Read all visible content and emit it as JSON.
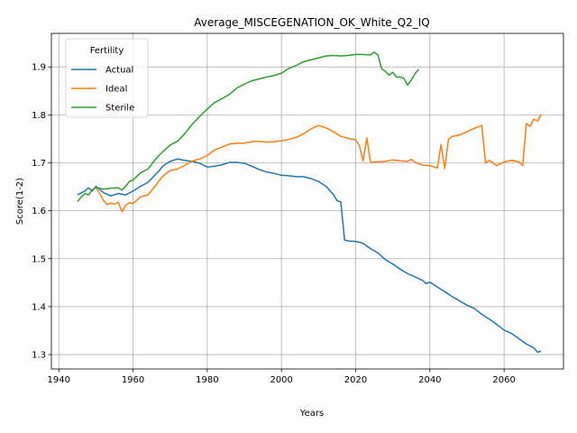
{
  "chart_data": {
    "type": "line",
    "title": "Average_MISCEGENATION_OK_White_Q2_IQ",
    "xlabel": "Years",
    "ylabel": "Score(1-2)",
    "xlim": [
      1938,
      2076
    ],
    "ylim": [
      1.27,
      1.97
    ],
    "xticks": [
      1940,
      1960,
      1980,
      2000,
      2020,
      2040,
      2060
    ],
    "yticks": [
      1.3,
      1.4,
      1.5,
      1.6,
      1.7,
      1.8,
      1.9
    ],
    "xtick_labels": [
      "1940",
      "1960",
      "1980",
      "2000",
      "2020",
      "2040",
      "2060"
    ],
    "ytick_labels": [
      "1.3",
      "1.4",
      "1.5",
      "1.6",
      "1.7",
      "1.8",
      "1.9"
    ],
    "grid": true,
    "legend": {
      "title": "Fertility",
      "placement": "top-left"
    },
    "series": [
      {
        "name": "Actual",
        "color": "#1f77b4",
        "points": [
          [
            1945,
            1.633
          ],
          [
            1947,
            1.641
          ],
          [
            1948,
            1.648
          ],
          [
            1949,
            1.641
          ],
          [
            1950,
            1.651
          ],
          [
            1952,
            1.638
          ],
          [
            1954,
            1.631
          ],
          [
            1956,
            1.636
          ],
          [
            1958,
            1.633
          ],
          [
            1960,
            1.641
          ],
          [
            1962,
            1.651
          ],
          [
            1964,
            1.659
          ],
          [
            1966,
            1.675
          ],
          [
            1967,
            1.683
          ],
          [
            1968,
            1.693
          ],
          [
            1970,
            1.703
          ],
          [
            1972,
            1.708
          ],
          [
            1974,
            1.705
          ],
          [
            1976,
            1.703
          ],
          [
            1978,
            1.699
          ],
          [
            1980,
            1.691
          ],
          [
            1982,
            1.693
          ],
          [
            1984,
            1.696
          ],
          [
            1986,
            1.701
          ],
          [
            1988,
            1.701
          ],
          [
            1990,
            1.699
          ],
          [
            1992,
            1.693
          ],
          [
            1994,
            1.686
          ],
          [
            1996,
            1.681
          ],
          [
            1998,
            1.678
          ],
          [
            2000,
            1.674
          ],
          [
            2002,
            1.673
          ],
          [
            2004,
            1.671
          ],
          [
            2006,
            1.671
          ],
          [
            2008,
            1.667
          ],
          [
            2010,
            1.661
          ],
          [
            2012,
            1.651
          ],
          [
            2014,
            1.634
          ],
          [
            2015,
            1.621
          ],
          [
            2016,
            1.618
          ],
          [
            2017,
            1.539
          ],
          [
            2018,
            1.537
          ],
          [
            2020,
            1.536
          ],
          [
            2022,
            1.532
          ],
          [
            2024,
            1.521
          ],
          [
            2026,
            1.512
          ],
          [
            2028,
            1.498
          ],
          [
            2030,
            1.489
          ],
          [
            2032,
            1.478
          ],
          [
            2034,
            1.469
          ],
          [
            2036,
            1.462
          ],
          [
            2038,
            1.455
          ],
          [
            2039,
            1.448
          ],
          [
            2040,
            1.451
          ],
          [
            2042,
            1.441
          ],
          [
            2044,
            1.431
          ],
          [
            2046,
            1.421
          ],
          [
            2048,
            1.412
          ],
          [
            2050,
            1.403
          ],
          [
            2052,
            1.396
          ],
          [
            2054,
            1.384
          ],
          [
            2056,
            1.374
          ],
          [
            2058,
            1.363
          ],
          [
            2060,
            1.351
          ],
          [
            2062,
            1.344
          ],
          [
            2064,
            1.333
          ],
          [
            2066,
            1.322
          ],
          [
            2068,
            1.314
          ],
          [
            2069,
            1.305
          ],
          [
            2070,
            1.307
          ]
        ]
      },
      {
        "name": "Ideal",
        "color": "#ff7f0e",
        "points": [
          [
            1950,
            1.648
          ],
          [
            1951,
            1.636
          ],
          [
            1952,
            1.622
          ],
          [
            1953,
            1.613
          ],
          [
            1954,
            1.616
          ],
          [
            1955,
            1.614
          ],
          [
            1956,
            1.618
          ],
          [
            1957,
            1.598
          ],
          [
            1958,
            1.611
          ],
          [
            1959,
            1.617
          ],
          [
            1960,
            1.615
          ],
          [
            1962,
            1.629
          ],
          [
            1964,
            1.633
          ],
          [
            1966,
            1.652
          ],
          [
            1968,
            1.672
          ],
          [
            1970,
            1.684
          ],
          [
            1972,
            1.687
          ],
          [
            1974,
            1.695
          ],
          [
            1976,
            1.704
          ],
          [
            1978,
            1.708
          ],
          [
            1980,
            1.715
          ],
          [
            1982,
            1.727
          ],
          [
            1984,
            1.733
          ],
          [
            1986,
            1.739
          ],
          [
            1988,
            1.741
          ],
          [
            1990,
            1.741
          ],
          [
            1992,
            1.744
          ],
          [
            1994,
            1.745
          ],
          [
            1996,
            1.743
          ],
          [
            1998,
            1.744
          ],
          [
            2000,
            1.746
          ],
          [
            2002,
            1.749
          ],
          [
            2004,
            1.753
          ],
          [
            2006,
            1.761
          ],
          [
            2008,
            1.771
          ],
          [
            2010,
            1.778
          ],
          [
            2012,
            1.773
          ],
          [
            2014,
            1.765
          ],
          [
            2016,
            1.755
          ],
          [
            2018,
            1.751
          ],
          [
            2020,
            1.748
          ],
          [
            2021,
            1.736
          ],
          [
            2022,
            1.704
          ],
          [
            2023,
            1.752
          ],
          [
            2024,
            1.701
          ],
          [
            2026,
            1.702
          ],
          [
            2028,
            1.703
          ],
          [
            2030,
            1.706
          ],
          [
            2032,
            1.704
          ],
          [
            2034,
            1.703
          ],
          [
            2035,
            1.707
          ],
          [
            2036,
            1.701
          ],
          [
            2038,
            1.695
          ],
          [
            2040,
            1.694
          ],
          [
            2042,
            1.689
          ],
          [
            2043,
            1.738
          ],
          [
            2044,
            1.688
          ],
          [
            2045,
            1.749
          ],
          [
            2046,
            1.755
          ],
          [
            2048,
            1.758
          ],
          [
            2050,
            1.765
          ],
          [
            2052,
            1.772
          ],
          [
            2054,
            1.778
          ],
          [
            2055,
            1.699
          ],
          [
            2056,
            1.705
          ],
          [
            2058,
            1.694
          ],
          [
            2060,
            1.702
          ],
          [
            2062,
            1.705
          ],
          [
            2064,
            1.702
          ],
          [
            2065,
            1.694
          ],
          [
            2066,
            1.782
          ],
          [
            2067,
            1.776
          ],
          [
            2068,
            1.791
          ],
          [
            2069,
            1.787
          ],
          [
            2070,
            1.801
          ]
        ]
      },
      {
        "name": "Sterile",
        "color": "#2ca02c",
        "points": [
          [
            1945,
            1.619
          ],
          [
            1946,
            1.628
          ],
          [
            1947,
            1.636
          ],
          [
            1948,
            1.633
          ],
          [
            1949,
            1.644
          ],
          [
            1950,
            1.649
          ],
          [
            1952,
            1.645
          ],
          [
            1954,
            1.647
          ],
          [
            1956,
            1.648
          ],
          [
            1957,
            1.643
          ],
          [
            1958,
            1.651
          ],
          [
            1959,
            1.661
          ],
          [
            1960,
            1.664
          ],
          [
            1962,
            1.679
          ],
          [
            1964,
            1.687
          ],
          [
            1966,
            1.707
          ],
          [
            1968,
            1.723
          ],
          [
            1970,
            1.737
          ],
          [
            1972,
            1.745
          ],
          [
            1974,
            1.761
          ],
          [
            1976,
            1.781
          ],
          [
            1978,
            1.797
          ],
          [
            1980,
            1.812
          ],
          [
            1982,
            1.826
          ],
          [
            1984,
            1.834
          ],
          [
            1986,
            1.843
          ],
          [
            1988,
            1.856
          ],
          [
            1990,
            1.864
          ],
          [
            1992,
            1.871
          ],
          [
            1994,
            1.875
          ],
          [
            1996,
            1.879
          ],
          [
            1998,
            1.882
          ],
          [
            2000,
            1.887
          ],
          [
            2002,
            1.897
          ],
          [
            2004,
            1.903
          ],
          [
            2006,
            1.911
          ],
          [
            2008,
            1.915
          ],
          [
            2010,
            1.919
          ],
          [
            2012,
            1.923
          ],
          [
            2014,
            1.924
          ],
          [
            2016,
            1.923
          ],
          [
            2018,
            1.924
          ],
          [
            2020,
            1.926
          ],
          [
            2022,
            1.926
          ],
          [
            2024,
            1.925
          ],
          [
            2025,
            1.931
          ],
          [
            2026,
            1.925
          ],
          [
            2027,
            1.896
          ],
          [
            2028,
            1.891
          ],
          [
            2029,
            1.883
          ],
          [
            2030,
            1.889
          ],
          [
            2031,
            1.879
          ],
          [
            2032,
            1.879
          ],
          [
            2033,
            1.876
          ],
          [
            2034,
            1.862
          ],
          [
            2035,
            1.873
          ],
          [
            2036,
            1.886
          ],
          [
            2037,
            1.895
          ]
        ]
      }
    ]
  }
}
